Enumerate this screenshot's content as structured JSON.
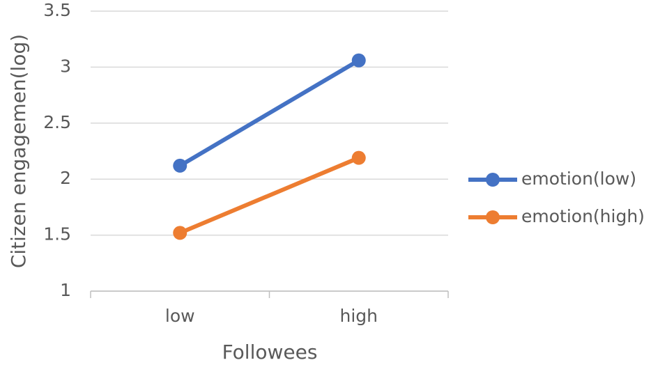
{
  "chart_data": {
    "type": "line",
    "xlabel": "Followees",
    "ylabel": "Citizen engagemen(log)",
    "categories": [
      "low",
      "high"
    ],
    "series": [
      {
        "name": "emotion(low)",
        "color": "#4472c4",
        "values": [
          2.12,
          3.06
        ]
      },
      {
        "name": "emotion(high)",
        "color": "#ed7d31",
        "values": [
          1.52,
          2.19
        ]
      }
    ],
    "ylim": [
      1,
      3.5
    ],
    "yticks": [
      1,
      1.5,
      2,
      2.5,
      3,
      3.5
    ],
    "grid": true,
    "legend": "right"
  }
}
